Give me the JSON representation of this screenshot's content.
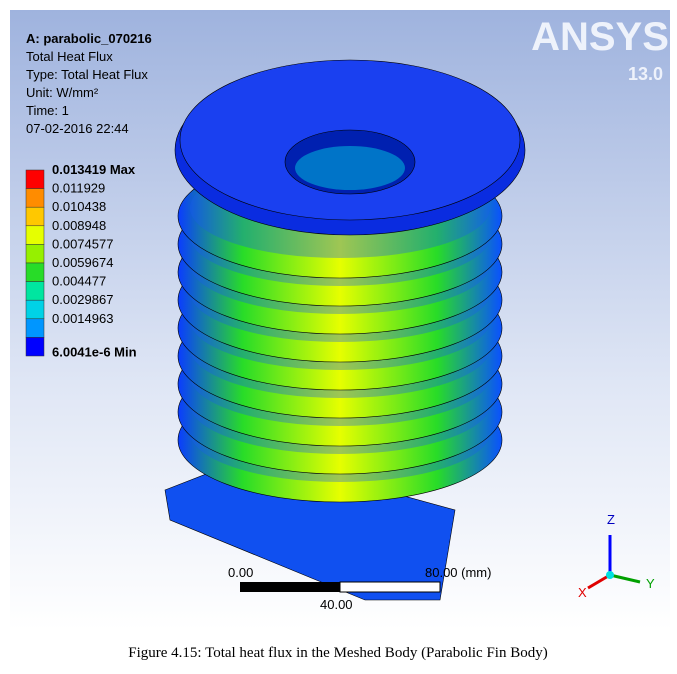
{
  "header": {
    "title": "A: parabolic_070216",
    "lines": [
      "Total Heat Flux",
      "Type: Total Heat Flux",
      "Unit: W/mm²",
      "Time: 1",
      "07-02-2016 22:44"
    ]
  },
  "logo": {
    "name": "ANSYS",
    "version": "13.0"
  },
  "legend": {
    "items": [
      {
        "label": "0.013419 Max",
        "color": "#ff0000"
      },
      {
        "label": "0.011929",
        "color": "#ff8c00"
      },
      {
        "label": "0.010438",
        "color": "#ffc800"
      },
      {
        "label": "0.008948",
        "color": "#e6ff00"
      },
      {
        "label": "0.0074577",
        "color": "#96f000"
      },
      {
        "label": "0.0059674",
        "color": "#28dc28"
      },
      {
        "label": "0.004477",
        "color": "#00e6a0"
      },
      {
        "label": "0.0029867",
        "color": "#00d2e6"
      },
      {
        "label": "0.0014963",
        "color": "#0096ff"
      },
      {
        "label": "6.0041e-6 Min",
        "color": "#0000ff"
      }
    ]
  },
  "scale_bar": {
    "start": "0.00",
    "end": "80.00 (mm)",
    "middle": "40.00"
  },
  "triad": {
    "z": "Z",
    "y": "Y",
    "x": "X"
  },
  "caption": "Figure 4.15: Total heat flux in the Meshed Body (Parabolic Fin Body)"
}
